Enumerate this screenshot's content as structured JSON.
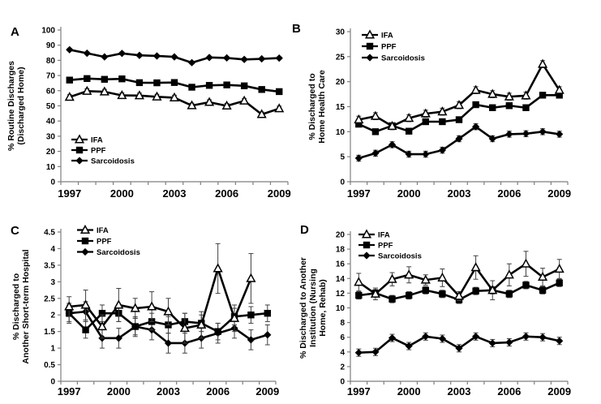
{
  "figure": {
    "background": "#ffffff",
    "text_color": "#000000",
    "axis_color": "#7f7f7f",
    "errorbar_color": "#404040",
    "series_color": "#000000"
  },
  "legend_labels": [
    "IFA",
    "PPF",
    "Sarcoidosis"
  ],
  "chart_data": [
    {
      "panel": "A",
      "type": "line",
      "ylabel_lines": [
        "% Routine Discharges",
        "(Discharged Home)"
      ],
      "categories": [
        1997,
        1998,
        1999,
        2000,
        2001,
        2002,
        2003,
        2004,
        2005,
        2006,
        2007,
        2008,
        2009
      ],
      "xtick_labels": [
        "1997",
        "2000",
        "2003",
        "2006",
        "2009"
      ],
      "ylim": [
        0,
        100
      ],
      "ytick_step": 10,
      "grid": false,
      "legend_position": "inside-lower-left",
      "series": [
        {
          "name": "IFA",
          "marker": "triangle-open",
          "values": [
            55.8,
            59.7,
            59.3,
            56.9,
            56.8,
            56.0,
            55.4,
            50.2,
            52.4,
            50.0,
            53.3,
            44.4,
            48.2
          ],
          "err": 1.6
        },
        {
          "name": "PPF",
          "marker": "square-filled",
          "values": [
            67.0,
            68.0,
            67.5,
            67.8,
            65.3,
            65.2,
            65.4,
            62.3,
            63.5,
            63.8,
            63.2,
            60.8,
            59.4
          ],
          "err": 1.0
        },
        {
          "name": "Sarcoidosis",
          "marker": "diamond-filled",
          "values": [
            87.0,
            84.7,
            82.3,
            84.6,
            83.3,
            82.9,
            82.3,
            78.5,
            81.9,
            81.6,
            80.6,
            81.0,
            81.5
          ],
          "err": 0.8
        }
      ]
    },
    {
      "panel": "B",
      "type": "line",
      "ylabel_lines": [
        "% Discharged to",
        "Home Health Care"
      ],
      "categories": [
        1997,
        1998,
        1999,
        2000,
        2001,
        2002,
        2003,
        2004,
        2005,
        2006,
        2007,
        2008,
        2009
      ],
      "xtick_labels": [
        "1997",
        "2000",
        "2003",
        "2006",
        "2009"
      ],
      "ylim": [
        0,
        30
      ],
      "ytick_step": 5,
      "grid": false,
      "legend_position": "inside-upper-left",
      "series": [
        {
          "name": "IFA",
          "marker": "triangle-open",
          "values": [
            12.4,
            13.1,
            11.1,
            12.7,
            13.6,
            14.0,
            15.3,
            18.3,
            17.5,
            17.0,
            17.2,
            23.5,
            18.3
          ],
          "err": 0.7
        },
        {
          "name": "PPF",
          "marker": "square-filled",
          "values": [
            11.5,
            10.0,
            11.2,
            10.1,
            12.0,
            12.0,
            12.4,
            15.4,
            14.8,
            15.2,
            14.8,
            17.3,
            17.3
          ],
          "err": 0.5
        },
        {
          "name": "Sarcoidosis",
          "marker": "diamond-filled",
          "values": [
            4.7,
            5.7,
            7.4,
            5.5,
            5.5,
            6.3,
            8.6,
            11.0,
            8.6,
            9.5,
            9.6,
            10.0,
            9.5
          ],
          "err": 0.6
        }
      ]
    },
    {
      "panel": "C",
      "type": "line",
      "ylabel_lines": [
        "% Discharged to",
        "Another Short-term Hospital"
      ],
      "categories": [
        1997,
        1998,
        1999,
        2000,
        2001,
        2002,
        2003,
        2004,
        2005,
        2006,
        2007,
        2008,
        2009
      ],
      "xtick_labels": [
        "1997",
        "2000",
        "2003",
        "2006",
        "2009"
      ],
      "ylim": [
        0,
        4.5
      ],
      "ytick_step": 0.5,
      "grid": false,
      "legend_position": "inside-upper-left",
      "series": [
        {
          "name": "IFA",
          "marker": "triangle-open",
          "values": [
            2.25,
            2.3,
            1.65,
            2.3,
            2.2,
            2.25,
            2.1,
            1.6,
            1.7,
            3.4,
            1.9,
            3.1,
            null
          ],
          "err": [
            0.3,
            0.45,
            0.35,
            0.5,
            0.3,
            0.45,
            0.4,
            0.45,
            0.4,
            0.75,
            0.4,
            0.75,
            0
          ]
        },
        {
          "name": "PPF",
          "marker": "square-filled",
          "values": [
            2.05,
            1.55,
            2.05,
            2.05,
            1.65,
            1.8,
            1.7,
            1.8,
            1.75,
            1.5,
            1.95,
            2.0,
            2.05
          ],
          "err": 0.25
        },
        {
          "name": "Sarcoidosis",
          "marker": "diamond-filled",
          "values": [
            2.05,
            2.1,
            1.3,
            1.3,
            1.65,
            1.55,
            1.15,
            1.15,
            1.3,
            1.45,
            1.6,
            1.25,
            1.4
          ],
          "err": 0.3
        }
      ]
    },
    {
      "panel": "D",
      "type": "line",
      "ylabel_lines": [
        "% Discharged to Another",
        "Institution (Nursing",
        "Home, Rehab)"
      ],
      "categories": [
        1997,
        1998,
        1999,
        2000,
        2001,
        2002,
        2003,
        2004,
        2005,
        2006,
        2007,
        2008,
        2009
      ],
      "xtick_labels": [
        "1997",
        "2000",
        "2003",
        "2006",
        "2009"
      ],
      "ylim": [
        0,
        20
      ],
      "ytick_step": 2,
      "grid": false,
      "legend_position": "inside-upper-left",
      "series": [
        {
          "name": "IFA",
          "marker": "triangle-open",
          "values": [
            13.5,
            11.9,
            13.9,
            14.5,
            13.8,
            14.1,
            11.6,
            15.5,
            12.4,
            14.5,
            16.0,
            14.2,
            15.3
          ],
          "err": [
            1.2,
            0.8,
            0.9,
            1.1,
            0.7,
            1.2,
            0.6,
            1.6,
            1.3,
            1.5,
            1.7,
            1.2,
            1.3
          ]
        },
        {
          "name": "PPF",
          "marker": "square-filled",
          "values": [
            11.7,
            12.0,
            11.2,
            11.7,
            12.4,
            11.9,
            11.1,
            12.3,
            12.4,
            11.9,
            13.1,
            12.4,
            13.4
          ],
          "err": 0.5
        },
        {
          "name": "Sarcoidosis",
          "marker": "diamond-filled",
          "values": [
            3.9,
            4.0,
            5.9,
            4.8,
            6.1,
            5.8,
            4.5,
            6.1,
            5.2,
            5.3,
            6.1,
            6.0,
            5.5
          ],
          "err": 0.5
        }
      ]
    }
  ]
}
